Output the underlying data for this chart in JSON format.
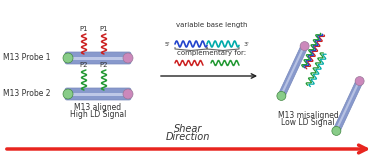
{
  "bg_color": "#ffffff",
  "shear_arrow_color": "#e8251f",
  "shear_text": [
    "Shear",
    "Direction"
  ],
  "left_label1": "M13 Probe 1",
  "left_label2": "M13 Probe 2",
  "center_label1": "M13 aligned",
  "center_label2": "High LD Signal",
  "right_label1": "M13 misaligned",
  "right_label2": "Low LD Signal",
  "mid_text1": "variable base length",
  "mid_text2": "complementary for:",
  "p1_color": "#cc2222",
  "p2_color": "#229933",
  "phage_body_color": "#8899cc",
  "phage_body_color2": "#ccd4ee",
  "phage_cap_color_left": "#88cc88",
  "phage_cap_color_right": "#cc88bb",
  "dna_blue": "#2244cc",
  "dna_cyan": "#00aaaa",
  "arrow_color": "#222222",
  "font_size_labels": 5.5,
  "font_size_small": 5.0,
  "font_size_shear": 7.0,
  "font_size_p": 5.0
}
